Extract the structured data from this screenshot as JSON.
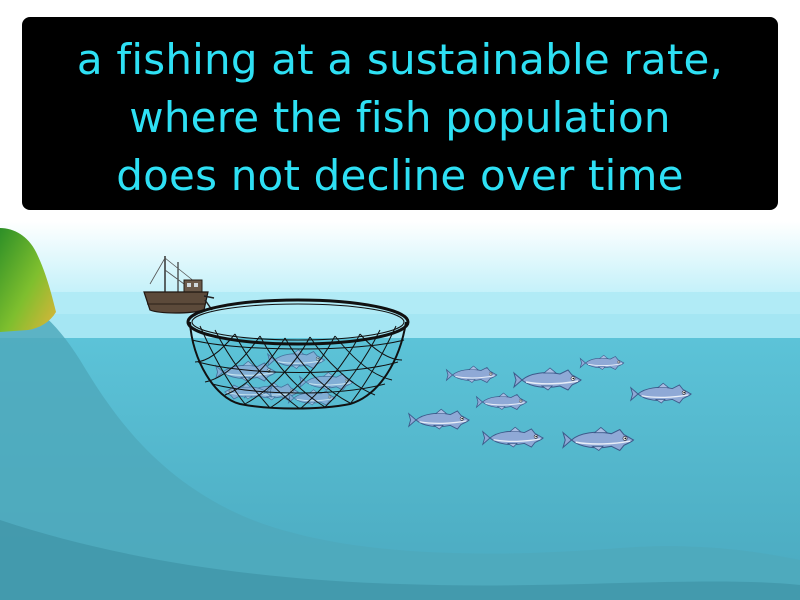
{
  "definition": {
    "lines": [
      "a fishing at a sustainable rate,",
      "where the fish population",
      "does not decline over time"
    ]
  },
  "colors": {
    "caption_background": "#000000",
    "caption_text": "#2ee0f4",
    "sky": "#ffffff",
    "sky_horizon": "#9ee8f6",
    "water_surface": "#9fe3f1",
    "water": "#53b9cf",
    "deep_water": "#4aa3b8",
    "cliff": "#2e9a2a",
    "fish": "#8fa9d6"
  },
  "icons": [
    "fishing-boat-icon",
    "fishing-net-icon",
    "fish-icon"
  ]
}
